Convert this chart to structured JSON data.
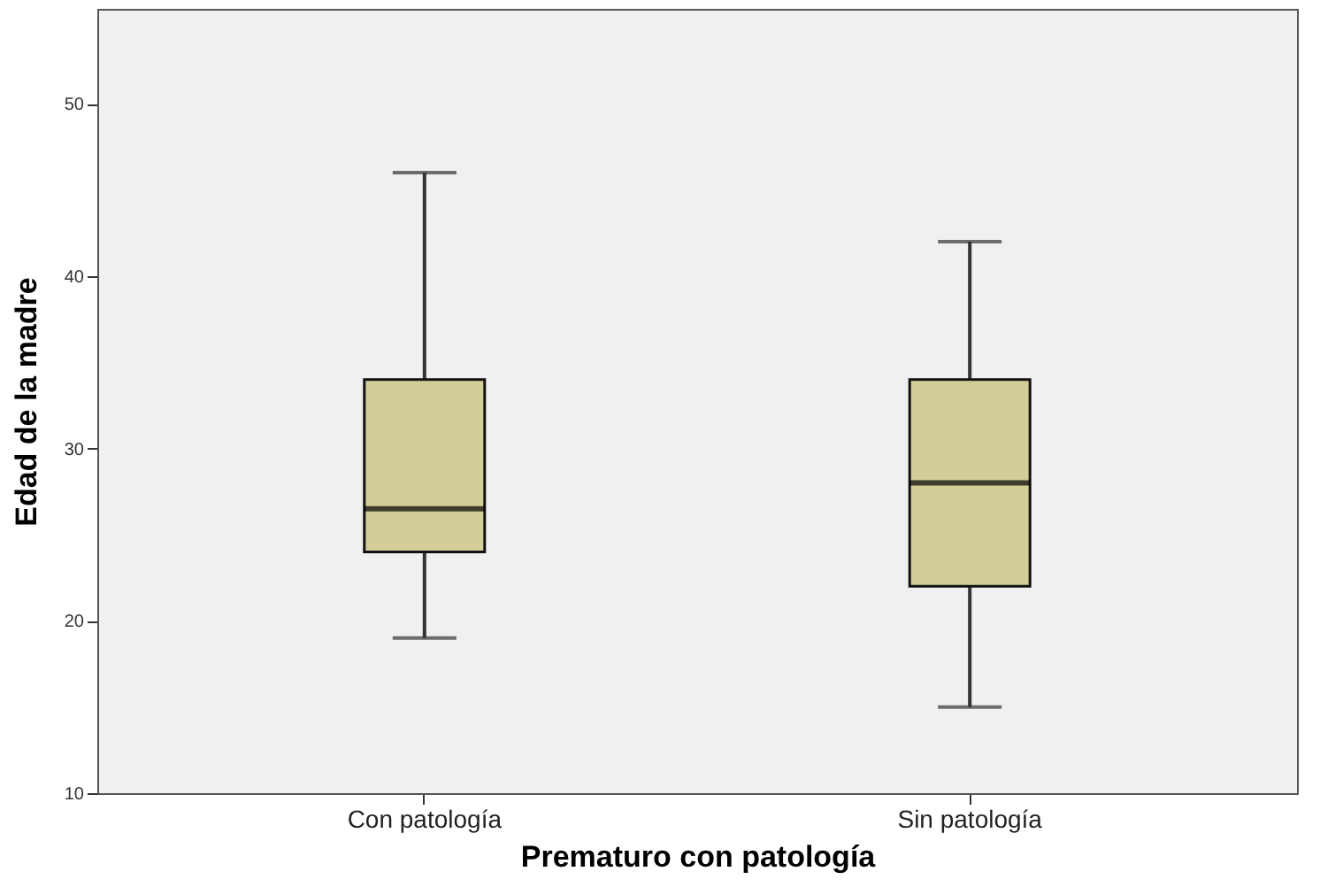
{
  "chart_data": {
    "type": "box",
    "xlabel": "Prematuro con patología",
    "ylabel": "Edad de la madre",
    "categories": [
      "Con patología",
      "Sin patología"
    ],
    "series": [
      {
        "color": "#d3ce97",
        "boxes": [
          {
            "low": 19,
            "q1": 24,
            "median": 26.5,
            "q3": 34,
            "high": 46
          },
          {
            "low": 15,
            "q1": 22,
            "median": 28,
            "q3": 34,
            "high": 42
          }
        ]
      }
    ],
    "ylim": [
      10,
      55.5
    ],
    "yticks": [
      10,
      20,
      30,
      40,
      50
    ],
    "grid": false
  }
}
